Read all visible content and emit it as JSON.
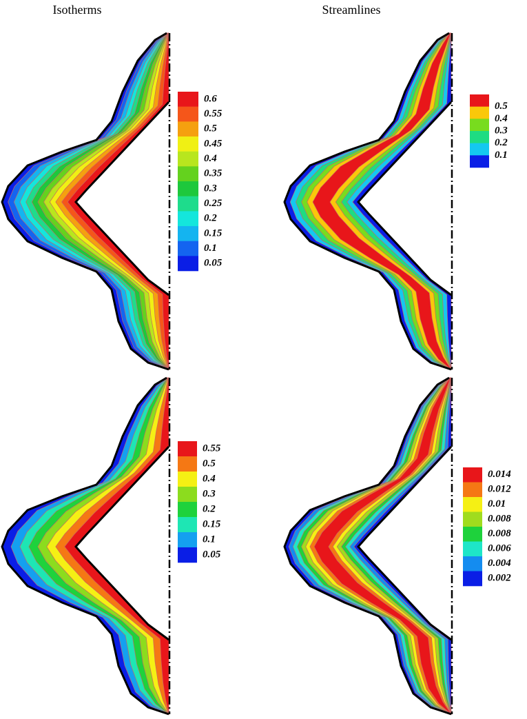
{
  "columns": [
    "Isotherms",
    "Streamlines"
  ],
  "panels": [
    {
      "legend": {
        "labels": [
          "0.6",
          "0.55",
          "0.5",
          "0.45",
          "0.4",
          "0.35",
          "0.3",
          "0.25",
          "0.2",
          "0.15",
          "0.1",
          "0.05"
        ],
        "colors": [
          "#e8161a",
          "#f5561a",
          "#f5a00f",
          "#f0f014",
          "#b8e61e",
          "#64d21e",
          "#1ec83c",
          "#1edc8c",
          "#14e6dc",
          "#14b4f0",
          "#1464f0",
          "#0a1ee6"
        ]
      }
    },
    {
      "legend": {
        "labels": [
          "0.5",
          "0.4",
          "0.3",
          "0.2",
          "0.1"
        ],
        "colors": [
          "#e8161a",
          "#fac80a",
          "#78dc1e",
          "#1edc82",
          "#14c8f0",
          "#0a1ee6"
        ]
      }
    },
    {
      "legend": {
        "labels": [
          "0.55",
          "0.5",
          "0.4",
          "0.3",
          "0.2",
          "0.15",
          "0.1",
          "0.05"
        ],
        "colors": [
          "#e8161a",
          "#f57814",
          "#f5f014",
          "#8cdc1e",
          "#1ed23c",
          "#1ee6b4",
          "#14a0f0",
          "#0a1ee6"
        ]
      }
    },
    {
      "legend": {
        "labels": [
          "0.014",
          "0.012",
          "0.01",
          "0.008",
          "0.008",
          "0.006",
          "0.004",
          "0.002"
        ],
        "colors": [
          "#e8161a",
          "#f57814",
          "#f5f014",
          "#a0dc1e",
          "#1ed23c",
          "#1ee6c8",
          "#148cf0",
          "#0a1ee6"
        ]
      }
    }
  ]
}
